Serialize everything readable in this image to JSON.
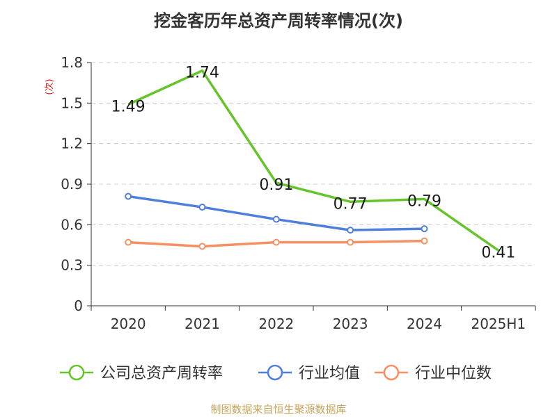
{
  "title": "挖金客历年总资产周转率情况(次)",
  "source": "制图数据来自恒生聚源数据库",
  "chart_data": {
    "type": "line",
    "categories": [
      "2020",
      "2021",
      "2022",
      "2023",
      "2024",
      "2025H1"
    ],
    "ylabel": "(次)",
    "ylim": [
      0,
      1.8
    ],
    "yticks": [
      "0",
      "0.3",
      "0.6",
      "0.9",
      "1.2",
      "1.5",
      "1.8"
    ],
    "grid": true,
    "legend_position": "bottom",
    "series": [
      {
        "name": "公司总资产周转率",
        "color": "#66c42b",
        "values": [
          1.49,
          1.74,
          0.91,
          0.77,
          0.79,
          0.41
        ],
        "labels": [
          "1.49",
          "1.74",
          "0.91",
          "0.77",
          "0.79",
          "0.41"
        ],
        "marker": "none"
      },
      {
        "name": "行业均值",
        "color": "#4f7fdc",
        "values": [
          0.81,
          0.73,
          0.64,
          0.56,
          0.57,
          null
        ],
        "marker": "circle"
      },
      {
        "name": "行业中位数",
        "color": "#f59062",
        "values": [
          0.47,
          0.44,
          0.47,
          0.47,
          0.48,
          null
        ],
        "marker": "circle"
      }
    ]
  }
}
